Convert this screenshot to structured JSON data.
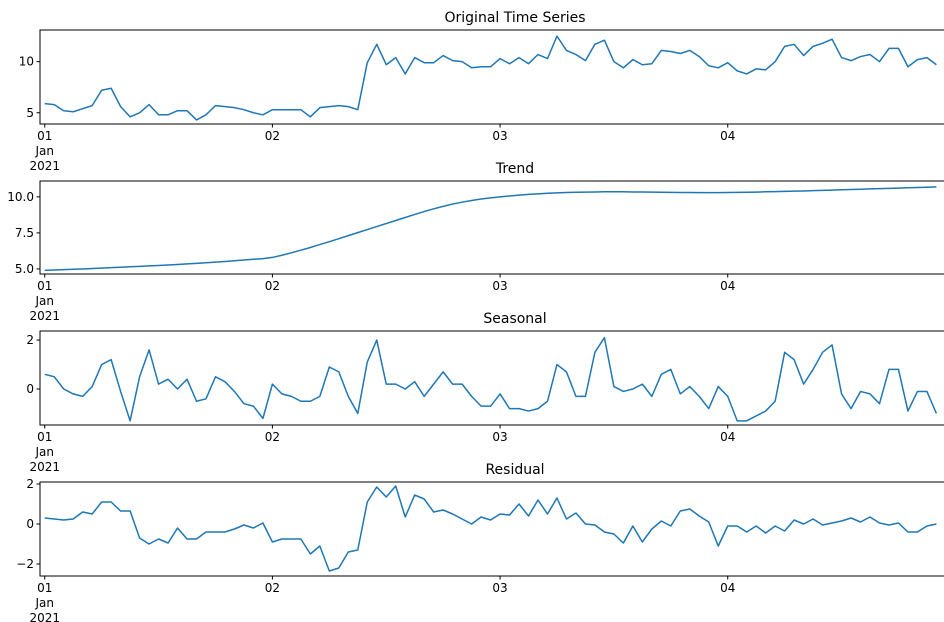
{
  "chart_data": [
    {
      "type": "line",
      "title": "Original Time Series",
      "color": "#1f77b4",
      "x": [
        0,
        1,
        2,
        3,
        4,
        5,
        6,
        7,
        8,
        9,
        10,
        11,
        12,
        13,
        14,
        15,
        16,
        17,
        18,
        19,
        20,
        21,
        22,
        23,
        24,
        25,
        26,
        27,
        28,
        29,
        30,
        31,
        32,
        33,
        34,
        35,
        36,
        37,
        38,
        39,
        40,
        41,
        42,
        43,
        44,
        45,
        46,
        47,
        48,
        49,
        50,
        51,
        52,
        53,
        54,
        55,
        56,
        57,
        58,
        59,
        60,
        61,
        62,
        63,
        64,
        65,
        66,
        67,
        68,
        69,
        70,
        71,
        72,
        73,
        74,
        75,
        76,
        77,
        78,
        79,
        80,
        81,
        82,
        83,
        84,
        85,
        86,
        87,
        88,
        89,
        90,
        91,
        92,
        93,
        94
      ],
      "values": [
        5.9,
        5.8,
        5.2,
        5.1,
        5.4,
        5.7,
        7.2,
        7.4,
        5.6,
        4.6,
        5.0,
        5.8,
        4.8,
        4.8,
        5.2,
        5.2,
        4.3,
        4.8,
        5.7,
        5.6,
        5.5,
        5.3,
        5.0,
        4.8,
        5.3,
        5.3,
        5.3,
        5.3,
        4.6,
        5.5,
        5.6,
        5.7,
        5.6,
        5.3,
        9.9,
        11.7,
        9.7,
        10.4,
        8.8,
        10.4,
        9.9,
        9.9,
        10.6,
        10.1,
        10.0,
        9.4,
        9.5,
        9.5,
        10.3,
        9.8,
        10.4,
        9.8,
        10.7,
        10.3,
        12.5,
        11.1,
        10.7,
        10.1,
        11.7,
        12.1,
        10.0,
        9.4,
        10.2,
        9.7,
        9.8,
        11.1,
        11.0,
        10.8,
        11.1,
        10.5,
        9.6,
        9.4,
        9.9,
        9.1,
        8.8,
        9.3,
        9.2,
        10.0,
        11.5,
        11.7,
        10.6,
        11.5,
        11.8,
        12.2,
        10.4,
        10.1,
        10.5,
        10.7,
        10.0,
        11.3,
        11.3,
        9.5,
        10.2,
        10.4,
        9.7
      ],
      "xlim": [
        -0.5,
        94.8
      ],
      "ylim": [
        3.9,
        13.1
      ],
      "yticks": [
        5,
        10
      ],
      "xticks": [
        {
          "value": 0,
          "label": "01\nJan\n2021"
        },
        {
          "value": 24,
          "label": "02"
        },
        {
          "value": 48,
          "label": "03"
        },
        {
          "value": 72,
          "label": "04"
        }
      ]
    },
    {
      "type": "line",
      "title": "Trend",
      "color": "#1f77b4",
      "x": [
        0,
        1,
        2,
        3,
        4,
        5,
        6,
        7,
        8,
        9,
        10,
        11,
        12,
        13,
        14,
        15,
        16,
        17,
        18,
        19,
        20,
        21,
        22,
        23,
        24,
        25,
        26,
        27,
        28,
        29,
        30,
        31,
        32,
        33,
        34,
        35,
        36,
        37,
        38,
        39,
        40,
        41,
        42,
        43,
        44,
        45,
        46,
        47,
        48,
        49,
        50,
        51,
        52,
        53,
        54,
        55,
        56,
        57,
        58,
        59,
        60,
        61,
        62,
        63,
        64,
        65,
        66,
        67,
        68,
        69,
        70,
        71,
        72,
        73,
        74,
        75,
        76,
        77,
        78,
        79,
        80,
        81,
        82,
        83,
        84,
        85,
        86,
        87,
        88,
        89,
        90,
        91,
        92,
        93,
        94
      ],
      "values": [
        4.9,
        4.93,
        4.95,
        4.98,
        5.0,
        5.03,
        5.06,
        5.09,
        5.12,
        5.15,
        5.18,
        5.21,
        5.24,
        5.27,
        5.31,
        5.35,
        5.39,
        5.43,
        5.47,
        5.52,
        5.57,
        5.62,
        5.67,
        5.72,
        5.8,
        5.95,
        6.12,
        6.3,
        6.49,
        6.69,
        6.89,
        7.1,
        7.31,
        7.52,
        7.73,
        7.94,
        8.15,
        8.36,
        8.57,
        8.78,
        8.98,
        9.17,
        9.34,
        9.5,
        9.63,
        9.75,
        9.85,
        9.93,
        10.0,
        10.06,
        10.12,
        10.17,
        10.21,
        10.25,
        10.28,
        10.3,
        10.32,
        10.33,
        10.34,
        10.35,
        10.35,
        10.35,
        10.34,
        10.34,
        10.33,
        10.32,
        10.31,
        10.3,
        10.3,
        10.29,
        10.29,
        10.29,
        10.3,
        10.31,
        10.32,
        10.33,
        10.35,
        10.36,
        10.38,
        10.4,
        10.41,
        10.43,
        10.45,
        10.47,
        10.49,
        10.51,
        10.53,
        10.55,
        10.57,
        10.59,
        10.61,
        10.63,
        10.65,
        10.67,
        10.69
      ],
      "xlim": [
        -0.5,
        94.8
      ],
      "ylim": [
        4.65,
        11.1
      ],
      "yticks": [
        {
          "value": 5,
          "label": "5.0"
        },
        7.5,
        {
          "value": 10,
          "label": "10.0"
        }
      ],
      "xticks": [
        {
          "value": 0,
          "label": "01\nJan\n2021"
        },
        {
          "value": 24,
          "label": "02"
        },
        {
          "value": 48,
          "label": "03"
        },
        {
          "value": 72,
          "label": "04"
        }
      ]
    },
    {
      "type": "line",
      "title": "Seasonal",
      "color": "#1f77b4",
      "x": [
        0,
        1,
        2,
        3,
        4,
        5,
        6,
        7,
        8,
        9,
        10,
        11,
        12,
        13,
        14,
        15,
        16,
        17,
        18,
        19,
        20,
        21,
        22,
        23,
        24,
        25,
        26,
        27,
        28,
        29,
        30,
        31,
        32,
        33,
        34,
        35,
        36,
        37,
        38,
        39,
        40,
        41,
        42,
        43,
        44,
        45,
        46,
        47,
        48,
        49,
        50,
        51,
        52,
        53,
        54,
        55,
        56,
        57,
        58,
        59,
        60,
        61,
        62,
        63,
        64,
        65,
        66,
        67,
        68,
        69,
        70,
        71,
        72,
        73,
        74,
        75,
        76,
        77,
        78,
        79,
        80,
        81,
        82,
        83,
        84,
        85,
        86,
        87,
        88,
        89,
        90,
        91,
        92,
        93,
        94
      ],
      "values": [
        0.6,
        0.5,
        0.0,
        -0.2,
        -0.3,
        0.1,
        1.0,
        1.2,
        -0.1,
        -1.3,
        0.5,
        1.6,
        0.2,
        0.4,
        0.0,
        0.4,
        -0.5,
        -0.4,
        0.5,
        0.3,
        -0.1,
        -0.6,
        -0.7,
        -1.2,
        0.2,
        -0.2,
        -0.3,
        -0.5,
        -0.5,
        -0.3,
        0.9,
        0.7,
        -0.3,
        -1.0,
        1.1,
        2.0,
        0.2,
        0.2,
        0.0,
        0.3,
        -0.3,
        0.2,
        0.7,
        0.2,
        0.2,
        -0.3,
        -0.7,
        -0.7,
        -0.2,
        -0.8,
        -0.8,
        -0.9,
        -0.8,
        -0.5,
        1.0,
        0.7,
        -0.3,
        -0.3,
        1.5,
        2.1,
        0.1,
        -0.1,
        0.0,
        0.2,
        -0.3,
        0.6,
        0.8,
        -0.2,
        0.1,
        -0.3,
        -0.8,
        0.1,
        -0.3,
        -1.3,
        -1.3,
        -1.1,
        -0.9,
        -0.5,
        1.5,
        1.2,
        0.2,
        0.8,
        1.5,
        1.8,
        -0.2,
        -0.8,
        -0.1,
        -0.2,
        -0.6,
        0.8,
        0.8,
        -0.9,
        -0.1,
        -0.1,
        -1.0
      ],
      "xlim": [
        -0.5,
        94.8
      ],
      "ylim": [
        -1.47,
        2.37
      ],
      "yticks": [
        0,
        2
      ],
      "xticks": [
        {
          "value": 0,
          "label": "01\nJan\n2021"
        },
        {
          "value": 24,
          "label": "02"
        },
        {
          "value": 48,
          "label": "03"
        },
        {
          "value": 72,
          "label": "04"
        }
      ]
    },
    {
      "type": "line",
      "title": "Residual",
      "color": "#1f77b4",
      "x": [
        0,
        1,
        2,
        3,
        4,
        5,
        6,
        7,
        8,
        9,
        10,
        11,
        12,
        13,
        14,
        15,
        16,
        17,
        18,
        19,
        20,
        21,
        22,
        23,
        24,
        25,
        26,
        27,
        28,
        29,
        30,
        31,
        32,
        33,
        34,
        35,
        36,
        37,
        38,
        39,
        40,
        41,
        42,
        43,
        44,
        45,
        46,
        47,
        48,
        49,
        50,
        51,
        52,
        53,
        54,
        55,
        56,
        57,
        58,
        59,
        60,
        61,
        62,
        63,
        64,
        65,
        66,
        67,
        68,
        69,
        70,
        71,
        72,
        73,
        74,
        75,
        76,
        77,
        78,
        79,
        80,
        81,
        82,
        83,
        84,
        85,
        86,
        87,
        88,
        89,
        90,
        91,
        92,
        93,
        94
      ],
      "values": [
        0.3,
        0.25,
        0.2,
        0.25,
        0.6,
        0.5,
        1.1,
        1.1,
        0.65,
        0.65,
        -0.7,
        -1.0,
        -0.75,
        -0.95,
        -0.2,
        -0.75,
        -0.75,
        -0.4,
        -0.4,
        -0.4,
        -0.25,
        -0.05,
        -0.2,
        0.05,
        -0.9,
        -0.75,
        -0.75,
        -0.75,
        -1.5,
        -1.1,
        -2.35,
        -2.2,
        -1.4,
        -1.3,
        1.1,
        1.85,
        1.35,
        1.9,
        0.35,
        1.45,
        1.25,
        0.6,
        0.7,
        0.5,
        0.25,
        0.0,
        0.35,
        0.2,
        0.5,
        0.45,
        1.0,
        0.4,
        1.2,
        0.5,
        1.3,
        0.25,
        0.55,
        0.0,
        -0.05,
        -0.4,
        -0.5,
        -0.95,
        -0.1,
        -0.9,
        -0.25,
        0.15,
        -0.1,
        0.65,
        0.75,
        0.4,
        0.1,
        -1.1,
        -0.1,
        -0.1,
        -0.4,
        -0.1,
        -0.45,
        -0.1,
        -0.35,
        0.2,
        0.0,
        0.25,
        -0.05,
        0.05,
        0.15,
        0.3,
        0.1,
        0.35,
        0.05,
        -0.05,
        0.05,
        -0.4,
        -0.4,
        -0.1,
        0.0
      ],
      "xlim": [
        -0.5,
        94.8
      ],
      "ylim": [
        -2.6,
        2.1
      ],
      "yticks": [
        {
          "value": -2,
          "label": "−2"
        },
        0,
        2
      ],
      "xticks": [
        {
          "value": 0,
          "label": "01\nJan\n2021"
        },
        {
          "value": 24,
          "label": "02"
        },
        {
          "value": 48,
          "label": "03"
        },
        {
          "value": 72,
          "label": "04"
        }
      ]
    }
  ]
}
